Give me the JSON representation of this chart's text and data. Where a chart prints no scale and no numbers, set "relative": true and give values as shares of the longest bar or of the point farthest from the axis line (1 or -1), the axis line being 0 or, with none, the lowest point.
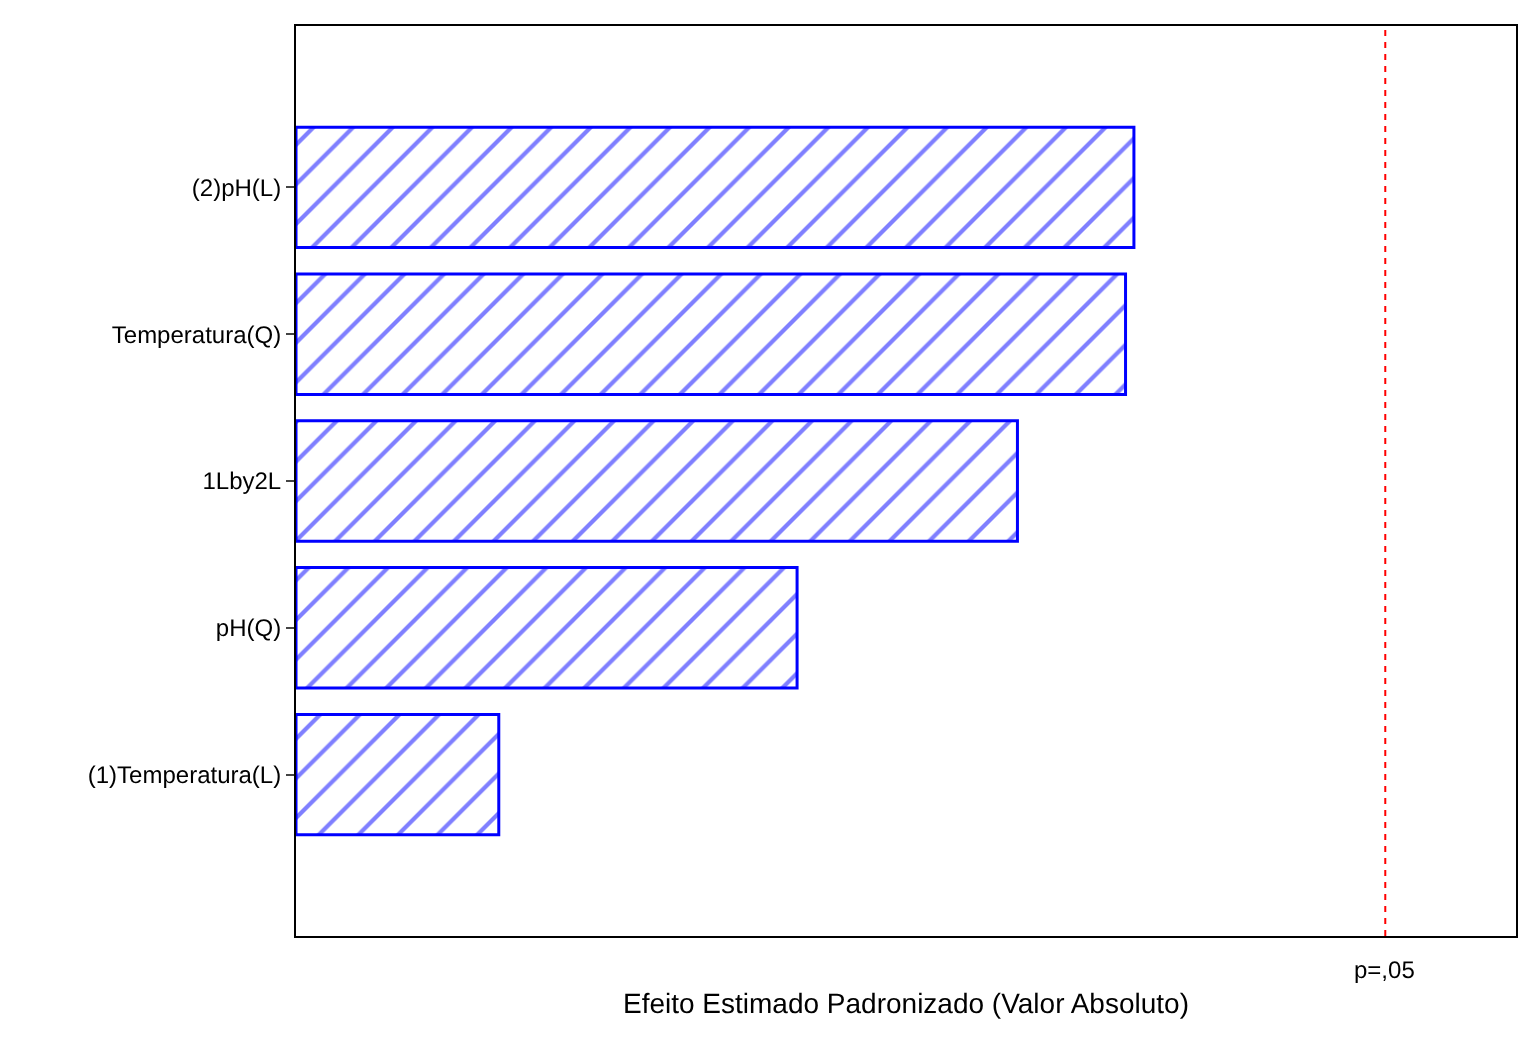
{
  "chart_data": {
    "type": "bar",
    "orientation": "horizontal",
    "relative": true,
    "xlabel": "Efeito Estimado Padronizado (Valor Absoluto)",
    "categories": [
      "(2)pH(L)",
      "Temperatura(Q)",
      "1Lby2L",
      "pH(Q)",
      "(1)Temperatura(L)"
    ],
    "values": [
      1.0,
      0.99,
      0.861,
      0.598,
      0.242
    ],
    "color": "#0000ff",
    "ref_lines": [
      {
        "axis": "x",
        "value": 1.3,
        "label": "p=,05",
        "color": "#ff0000",
        "line_style": "dotted"
      }
    ],
    "legend": false
  }
}
